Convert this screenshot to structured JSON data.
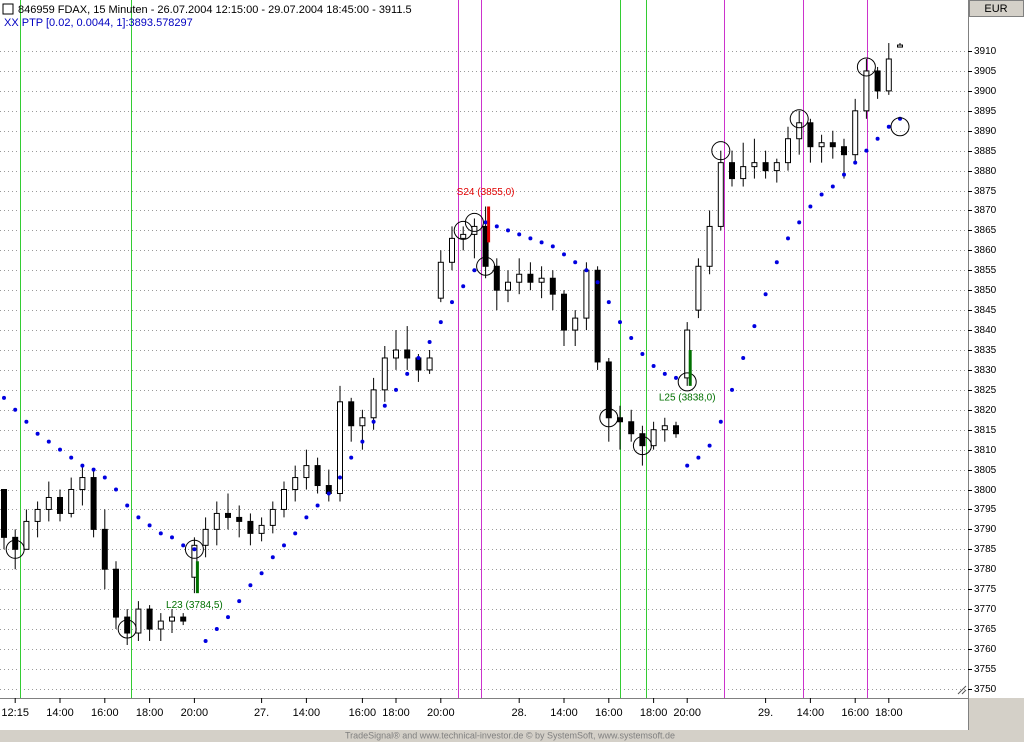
{
  "chart_data": {
    "type": "candlestick",
    "title": "846959  FDAX, 15 Minuten - 26.07.2004 12:15:00 - 29.07.2004 18:45:00 - 3911.5",
    "subtitle": "XX PTP [0.02, 0.0044, 1]:3893.578297",
    "currency": "EUR",
    "footer": "TradeSignal® and www.technical-investor.de © by SystemSoft, www.systemsoft.de",
    "categories": [
      null,
      "12:15",
      null,
      null,
      null,
      "14:00",
      null,
      null,
      null,
      "16:00",
      null,
      null,
      null,
      "18:00",
      null,
      null,
      null,
      "20:00",
      null,
      null,
      null,
      null,
      null,
      "27.",
      null,
      null,
      null,
      "14:00",
      null,
      null,
      null,
      null,
      "16:00",
      null,
      null,
      "18:00",
      null,
      null,
      null,
      "20:00",
      null,
      null,
      null,
      null,
      null,
      null,
      "28.",
      null,
      null,
      null,
      "14:00",
      null,
      null,
      null,
      "16:00",
      null,
      null,
      null,
      "18:00",
      null,
      null,
      "20:00",
      null,
      null,
      null,
      null,
      null,
      null,
      "29.",
      null,
      null,
      null,
      "14:00",
      null,
      null,
      null,
      "16:00",
      null,
      null,
      "18:00",
      null
    ],
    "ohlc": [
      [
        3800,
        3800,
        3785,
        3788
      ],
      [
        3788,
        3790,
        3780,
        3785
      ],
      [
        3785,
        3795,
        3785,
        3792
      ],
      [
        3792,
        3797,
        3788,
        3795
      ],
      [
        3795,
        3802,
        3792,
        3798
      ],
      [
        3798,
        3800,
        3792,
        3794
      ],
      [
        3794,
        3803,
        3793,
        3800
      ],
      [
        3800,
        3806,
        3796,
        3803
      ],
      [
        3803,
        3805,
        3788,
        3790
      ],
      [
        3790,
        3795,
        3775,
        3780
      ],
      [
        3780,
        3782,
        3765,
        3768
      ],
      [
        3768,
        3770,
        3761,
        3764
      ],
      [
        3764,
        3772,
        3762,
        3770
      ],
      [
        3770,
        3771,
        3762,
        3765
      ],
      [
        3765,
        3769,
        3762,
        3767
      ],
      [
        3767,
        3770,
        3764,
        3768
      ],
      [
        3768,
        3769,
        3766,
        3767
      ],
      [
        3778,
        3788,
        3774,
        3786
      ],
      [
        3786,
        3793,
        3783,
        3790
      ],
      [
        3790,
        3797,
        3786,
        3794
      ],
      [
        3794,
        3799,
        3790,
        3793
      ],
      [
        3793,
        3796,
        3788,
        3792
      ],
      [
        3792,
        3794,
        3786,
        3789
      ],
      [
        3789,
        3793,
        3787,
        3791
      ],
      [
        3791,
        3797,
        3789,
        3795
      ],
      [
        3795,
        3802,
        3793,
        3800
      ],
      [
        3800,
        3806,
        3797,
        3803
      ],
      [
        3803,
        3810,
        3800,
        3806
      ],
      [
        3806,
        3808,
        3799,
        3801
      ],
      [
        3801,
        3805,
        3797,
        3799
      ],
      [
        3799,
        3826,
        3797,
        3822
      ],
      [
        3822,
        3823,
        3812,
        3816
      ],
      [
        3816,
        3820,
        3810,
        3818
      ],
      [
        3818,
        3828,
        3815,
        3825
      ],
      [
        3825,
        3836,
        3822,
        3833
      ],
      [
        3833,
        3840,
        3830,
        3835
      ],
      [
        3835,
        3841,
        3830,
        3833
      ],
      [
        3833,
        3834,
        3827,
        3830
      ],
      [
        3830,
        3835,
        3829,
        3833
      ],
      [
        3848,
        3860,
        3847,
        3857
      ],
      [
        3857,
        3866,
        3855,
        3863
      ],
      [
        3863,
        3866,
        3860,
        3864
      ],
      [
        3864,
        3868,
        3858,
        3866
      ],
      [
        3866,
        3871,
        3853,
        3856
      ],
      [
        3856,
        3858,
        3845,
        3850
      ],
      [
        3850,
        3855,
        3847,
        3852
      ],
      [
        3852,
        3858,
        3849,
        3854
      ],
      [
        3854,
        3857,
        3850,
        3852
      ],
      [
        3852,
        3856,
        3848,
        3853
      ],
      [
        3853,
        3855,
        3845,
        3849
      ],
      [
        3849,
        3850,
        3836,
        3840
      ],
      [
        3840,
        3845,
        3836,
        3843
      ],
      [
        3843,
        3857,
        3840,
        3855
      ],
      [
        3855,
        3856,
        3830,
        3832
      ],
      [
        3832,
        3833,
        3812,
        3818
      ],
      [
        3818,
        3821,
        3810,
        3817
      ],
      [
        3817,
        3820,
        3812,
        3814
      ],
      [
        3814,
        3816,
        3806,
        3811
      ],
      [
        3811,
        3817,
        3810,
        3815
      ],
      [
        3815,
        3818,
        3812,
        3816
      ],
      [
        3816,
        3817,
        3813,
        3814
      ],
      [
        3828,
        3842,
        3826,
        3840
      ],
      [
        3845,
        3858,
        3843,
        3856
      ],
      [
        3856,
        3870,
        3854,
        3866
      ],
      [
        3866,
        3885,
        3865,
        3882
      ],
      [
        3882,
        3885,
        3876,
        3878
      ],
      [
        3878,
        3887,
        3876,
        3881
      ],
      [
        3881,
        3888,
        3878,
        3882
      ],
      [
        3882,
        3885,
        3878,
        3880
      ],
      [
        3880,
        3883,
        3877,
        3882
      ],
      [
        3882,
        3891,
        3880,
        3888
      ],
      [
        3888,
        3895,
        3884,
        3892
      ],
      [
        3892,
        3893,
        3882,
        3886
      ],
      [
        3886,
        3889,
        3882,
        3887
      ],
      [
        3887,
        3890,
        3883,
        3886
      ],
      [
        3886,
        3888,
        3878,
        3884
      ],
      [
        3884,
        3898,
        3882,
        3895
      ],
      [
        3895,
        3908,
        3893,
        3905
      ],
      [
        3905,
        3906,
        3898,
        3900
      ],
      [
        3900,
        3912,
        3899,
        3908
      ],
      [
        3911,
        3912,
        3911,
        3911.5
      ]
    ],
    "candle_color": "#000000",
    "ptp": {
      "color": "#0000e0",
      "values": [
        3823,
        3820,
        3817,
        3814,
        3812,
        3810,
        3808,
        3806,
        3805,
        3803,
        3800,
        3796,
        3793,
        3791,
        3789,
        3788,
        3786,
        3785,
        3762,
        3765,
        3768,
        3772,
        3776,
        3779,
        3783,
        3786,
        3789,
        3793,
        3796,
        3799,
        3803,
        3808,
        3812,
        3817,
        3821,
        3825,
        3829,
        3833,
        3837,
        3842,
        3847,
        3851,
        3855,
        3867,
        3866,
        3865,
        3864,
        3863,
        3862,
        3861,
        3859,
        3857,
        3855,
        3852,
        3847,
        3842,
        3838,
        3834,
        3831,
        3829,
        3828,
        3806,
        3808,
        3811,
        3817,
        3825,
        3833,
        3841,
        3849,
        3857,
        3863,
        3867,
        3871,
        3874,
        3876,
        3879,
        3882,
        3885,
        3888,
        3891,
        3893
      ]
    },
    "circles": [
      null,
      3785,
      null,
      null,
      null,
      null,
      null,
      null,
      null,
      null,
      null,
      3765,
      null,
      null,
      null,
      null,
      null,
      3785,
      null,
      null,
      null,
      null,
      null,
      null,
      null,
      null,
      null,
      null,
      null,
      null,
      null,
      null,
      null,
      null,
      null,
      null,
      null,
      null,
      null,
      null,
      null,
      3865,
      3867,
      3856,
      null,
      null,
      null,
      null,
      null,
      null,
      null,
      null,
      null,
      null,
      3818,
      null,
      null,
      3811,
      null,
      null,
      null,
      3827,
      null,
      null,
      3885,
      null,
      null,
      null,
      null,
      null,
      null,
      3893,
      null,
      null,
      null,
      null,
      null,
      3906,
      null,
      null,
      3891
    ],
    "signals": {
      "low": [
        null,
        null,
        null,
        null,
        null,
        null,
        null,
        null,
        null,
        null,
        null,
        null,
        null,
        null,
        null,
        null,
        null,
        3774,
        null,
        null,
        null,
        null,
        null,
        null,
        null,
        null,
        null,
        null,
        null,
        null,
        null,
        null,
        null,
        null,
        null,
        null,
        null,
        null,
        null,
        null,
        null,
        null,
        null,
        3862,
        null,
        null,
        null,
        null,
        null,
        null,
        null,
        null,
        null,
        null,
        null,
        null,
        null,
        null,
        null,
        null,
        null,
        3826,
        null,
        null,
        null,
        null,
        null,
        null,
        null,
        null,
        null,
        null,
        null,
        null,
        null,
        null,
        null,
        null,
        null,
        null,
        null
      ],
      "high": [
        null,
        null,
        null,
        null,
        null,
        null,
        null,
        null,
        null,
        null,
        null,
        null,
        null,
        null,
        null,
        null,
        null,
        3782,
        null,
        null,
        null,
        null,
        null,
        null,
        null,
        null,
        null,
        null,
        null,
        null,
        null,
        null,
        null,
        null,
        null,
        null,
        null,
        null,
        null,
        null,
        null,
        null,
        null,
        3871,
        null,
        null,
        null,
        null,
        null,
        null,
        null,
        null,
        null,
        null,
        null,
        null,
        null,
        null,
        null,
        null,
        null,
        3835,
        null,
        null,
        null,
        null,
        null,
        null,
        null,
        null,
        null,
        null,
        null,
        null,
        null,
        null,
        null,
        null,
        null,
        null,
        null
      ],
      "labels": [
        null,
        null,
        null,
        null,
        null,
        null,
        null,
        null,
        null,
        null,
        null,
        null,
        null,
        null,
        null,
        null,
        null,
        "L23 (3784,5)",
        null,
        null,
        null,
        null,
        null,
        null,
        null,
        null,
        null,
        null,
        null,
        null,
        null,
        null,
        null,
        null,
        null,
        null,
        null,
        null,
        null,
        null,
        null,
        null,
        null,
        "S24 (3855,0)",
        null,
        null,
        null,
        null,
        null,
        null,
        null,
        null,
        null,
        null,
        null,
        null,
        null,
        null,
        null,
        null,
        null,
        "L25 (3838,0)",
        null,
        null,
        null,
        null,
        null,
        null,
        null,
        null,
        null,
        null,
        null,
        null,
        null,
        null,
        null,
        null,
        null,
        null,
        null
      ],
      "colors": [
        null,
        null,
        null,
        null,
        null,
        null,
        null,
        null,
        null,
        null,
        null,
        null,
        null,
        null,
        null,
        null,
        null,
        "#007000",
        null,
        null,
        null,
        null,
        null,
        null,
        null,
        null,
        null,
        null,
        null,
        null,
        null,
        null,
        null,
        null,
        null,
        null,
        null,
        null,
        null,
        null,
        null,
        null,
        null,
        "#e00000",
        null,
        null,
        null,
        null,
        null,
        null,
        null,
        null,
        null,
        null,
        null,
        null,
        null,
        null,
        null,
        null,
        null,
        "#007000",
        null,
        null,
        null,
        null,
        null,
        null,
        null,
        null,
        null,
        null,
        null,
        null,
        null,
        null,
        null,
        null,
        null,
        null,
        null
      ]
    },
    "ylim": [
      3747.7,
      3922.8
    ],
    "yticks": [
      3750,
      3755,
      3760,
      3765,
      3770,
      3775,
      3780,
      3785,
      3790,
      3795,
      3800,
      3805,
      3810,
      3815,
      3820,
      3825,
      3830,
      3835,
      3840,
      3845,
      3850,
      3855,
      3860,
      3865,
      3870,
      3875,
      3880,
      3885,
      3890,
      3895,
      3900,
      3905,
      3910
    ],
    "grid": true
  }
}
